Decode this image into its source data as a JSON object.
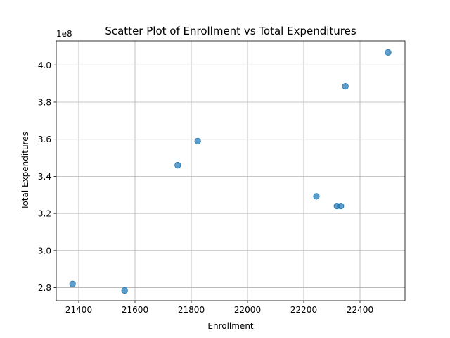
{
  "chart_data": {
    "type": "scatter",
    "title": "Scatter Plot of Enrollment vs Total Expenditures",
    "xlabel": "Enrollment",
    "ylabel": "Total Expenditures",
    "y_offset_label": "1e8",
    "xlim": [
      21320,
      22560
    ],
    "ylim": [
      2.73,
      4.13
    ],
    "y_scale": 100000000,
    "xticks": [
      21400,
      21600,
      21800,
      22000,
      22200,
      22400
    ],
    "yticks": [
      2.8,
      3.0,
      3.2,
      3.4,
      3.6,
      3.8,
      4.0
    ],
    "ytick_labels": [
      "2.8",
      "3.0",
      "3.2",
      "3.4",
      "3.6",
      "3.8",
      "4.0"
    ],
    "grid": true,
    "marker_color": "#1f77b4",
    "points": [
      {
        "x": 21378,
        "y": 2.82
      },
      {
        "x": 21563,
        "y": 2.785
      },
      {
        "x": 21752,
        "y": 3.46
      },
      {
        "x": 21823,
        "y": 3.59
      },
      {
        "x": 22245,
        "y": 3.292
      },
      {
        "x": 22318,
        "y": 3.24
      },
      {
        "x": 22332,
        "y": 3.24
      },
      {
        "x": 22348,
        "y": 3.885
      },
      {
        "x": 22500,
        "y": 4.068
      }
    ]
  }
}
